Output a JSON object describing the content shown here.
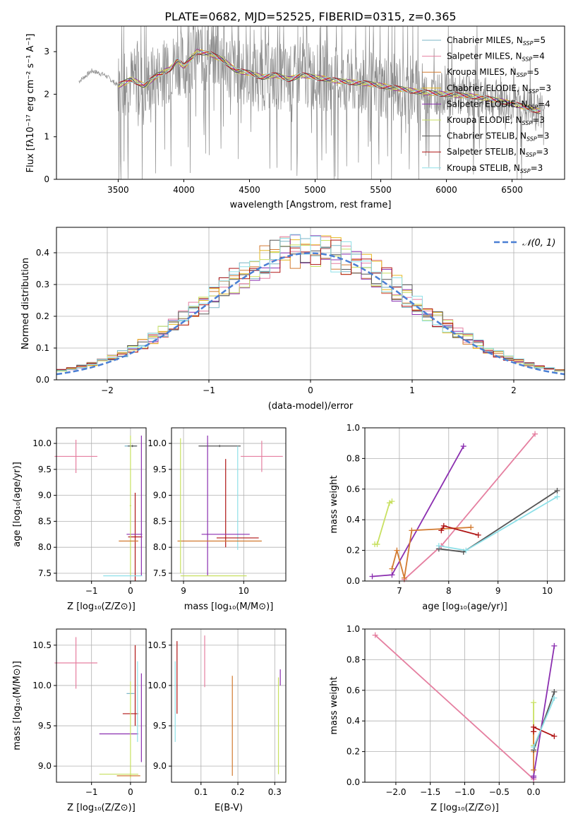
{
  "title": "PLATE=0682, MJD=52525, FIBERID=0315, z=0.365",
  "colors": {
    "chabrier_miles": "#7ab6c6",
    "salpeter_miles": "#e57fa0",
    "kroupa_miles": "#d27a30",
    "chabrier_elodie": "#e6b820",
    "salpeter_elodie": "#8b2fb0",
    "kroupa_elodie": "#c8e060",
    "chabrier_stelib": "#555555",
    "salpeter_stelib": "#b01515",
    "kroupa_stelib": "#8ee0e8",
    "data": "#8a8a8a",
    "normal": "#4a7fd4",
    "grid": "#b0b0b0"
  },
  "chart_data": [
    {
      "type": "line",
      "xlabel": "wavelength [Angstrom, rest frame]",
      "ylabel": "Flux [fλ10⁻¹⁷ erg cm⁻² s⁻¹ A⁻¹]",
      "xlim": [
        3030,
        6900
      ],
      "ylim": [
        0,
        3.6
      ],
      "xticks": [
        3500,
        4000,
        4500,
        5000,
        5500,
        6000,
        6500
      ],
      "yticks": [
        0,
        1,
        2,
        3
      ],
      "legend": "top-right",
      "series": [
        {
          "name": "Chabrier MILES, N_SSP=5"
        },
        {
          "name": "Salpeter MILES, N_SSP=4"
        },
        {
          "name": "Kroupa MILES, N_SSP=5"
        },
        {
          "name": "Chabrier ELODIE, N_SSP=3"
        },
        {
          "name": "Salpeter ELODIE, N_SSP=4"
        },
        {
          "name": "Kroupa ELODIE, N_SSP=3"
        },
        {
          "name": "Chabrier STELIB, N_SSP=3"
        },
        {
          "name": "Salpeter STELIB, N_SSP=3"
        },
        {
          "name": "Kroupa STELIB, N_SSP=3"
        }
      ],
      "model_points": [
        [
          3200,
          2.3
        ],
        [
          3300,
          2.55
        ],
        [
          3400,
          2.45
        ],
        [
          3500,
          2.2
        ],
        [
          3600,
          2.35
        ],
        [
          3700,
          2.2
        ],
        [
          3800,
          2.45
        ],
        [
          3900,
          2.6
        ],
        [
          3950,
          2.8
        ],
        [
          4000,
          2.65
        ],
        [
          4100,
          3.0
        ],
        [
          4200,
          2.95
        ],
        [
          4300,
          2.8
        ],
        [
          4400,
          2.55
        ],
        [
          4500,
          2.5
        ],
        [
          4600,
          2.4
        ],
        [
          4700,
          2.45
        ],
        [
          4800,
          2.35
        ],
        [
          4900,
          2.45
        ],
        [
          5000,
          2.4
        ],
        [
          5200,
          2.3
        ],
        [
          5400,
          2.25
        ],
        [
          5600,
          2.15
        ],
        [
          5800,
          2.05
        ],
        [
          6000,
          2.0
        ],
        [
          6200,
          1.95
        ],
        [
          6400,
          1.85
        ],
        [
          6600,
          1.7
        ],
        [
          6700,
          1.6
        ]
      ]
    },
    {
      "type": "bar",
      "xlabel": "(data-model)/error",
      "ylabel": "Normed distribution",
      "xlim": [
        -2.5,
        2.5
      ],
      "ylim": [
        0,
        0.48
      ],
      "xticks": [
        -2,
        -1,
        0,
        1,
        2
      ],
      "yticks": [
        0,
        0.1,
        0.2,
        0.3,
        0.4
      ],
      "legend": "top-right",
      "normal_label": "𝒩(0, 1)"
    },
    {
      "type": "scatter",
      "xlabel": "Z [log₁₀(Z/Z⊙)]",
      "ylabel": "age  [log₁₀(age/yr)]",
      "xlim": [
        -1.9,
        0.4
      ],
      "ylim": [
        7.35,
        10.3
      ],
      "xticks": [
        -1,
        0
      ],
      "yticks": [
        7.5,
        8.0,
        8.5,
        9.0,
        9.5,
        10.0
      ],
      "points": [
        {
          "series": "salpeter_miles",
          "x": -1.4,
          "y": 9.75,
          "ex": 0.55,
          "ey": 0.3
        },
        {
          "series": "chabrier_miles",
          "x": 0.0,
          "y": 9.95,
          "ex": 0.15,
          "ey": 0.1
        },
        {
          "series": "salpeter_stelib",
          "x": 0.1,
          "y": 8.15,
          "ex": 0.2,
          "ey": 0.9
        },
        {
          "series": "salpeter_elodie",
          "x": 0.3,
          "y": 8.8,
          "ex": 0.6,
          "ey": 1.3
        },
        {
          "series": "kroupa_elodie",
          "x": 0.0,
          "y": 8.8,
          "ex": 0.05,
          "ey": 1.4
        },
        {
          "series": "kroupa_miles",
          "x": -0.05,
          "y": 8.1,
          "ex": 0.3,
          "ey": 0.05
        },
        {
          "series": "kroupa_stelib",
          "x": -0.2,
          "y": 7.45,
          "ex": 0.5,
          "ey": 0.05
        }
      ]
    },
    {
      "type": "scatter",
      "xlabel": "mass [log₁₀(M/M⊙)]",
      "ylabel": "",
      "xlim": [
        8.8,
        10.7
      ],
      "ylim": [
        7.35,
        10.3
      ],
      "xticks": [
        9,
        10
      ],
      "yticks": [
        7.5,
        8.0,
        8.5,
        9.0,
        9.5,
        10.0
      ]
    },
    {
      "type": "line",
      "xlabel": "age  [log₁₀(age/yr)]",
      "ylabel": "mass weight",
      "xlim": [
        6.3,
        10.35
      ],
      "ylim": [
        0,
        1
      ],
      "xticks": [
        7,
        8,
        9,
        10
      ],
      "yticks": [
        0,
        0.2,
        0.4,
        0.6,
        0.8,
        1.0
      ],
      "series": [
        {
          "key": "salpeter_elodie",
          "x": [
            6.45,
            6.85,
            8.3
          ],
          "y": [
            0.03,
            0.04,
            0.88
          ]
        },
        {
          "key": "salpeter_miles",
          "x": [
            7.1,
            7.85,
            9.75
          ],
          "y": [
            0.01,
            0.23,
            0.96
          ]
        },
        {
          "key": "kroupa_elodie",
          "x": [
            6.5,
            6.55,
            6.8,
            6.85
          ],
          "y": [
            0.24,
            0.24,
            0.51,
            0.52
          ]
        },
        {
          "key": "kroupa_miles",
          "x": [
            6.85,
            6.95,
            7.1,
            7.25,
            8.45
          ],
          "y": [
            0.08,
            0.2,
            0.02,
            0.33,
            0.35
          ]
        },
        {
          "key": "salpeter_stelib",
          "x": [
            7.85,
            7.9,
            8.6
          ],
          "y": [
            0.33,
            0.36,
            0.3
          ]
        },
        {
          "key": "chabrier_stelib",
          "x": [
            7.8,
            8.3,
            10.2
          ],
          "y": [
            0.21,
            0.19,
            0.59
          ]
        },
        {
          "key": "kroupa_stelib",
          "x": [
            7.8,
            8.35,
            10.2
          ],
          "y": [
            0.23,
            0.2,
            0.55
          ]
        }
      ]
    },
    {
      "type": "scatter",
      "xlabel": "Z [log₁₀(Z/Z⊙)]",
      "ylabel": "mass [log₁₀(M/M⊙)]",
      "xlim": [
        -1.9,
        0.4
      ],
      "ylim": [
        8.8,
        10.7
      ],
      "xticks": [
        -1,
        0
      ],
      "yticks": [
        9.0,
        9.5,
        10.0,
        10.5
      ]
    },
    {
      "type": "scatter",
      "xlabel": "E(B-V)",
      "ylabel": "",
      "xlim": [
        0.02,
        0.33
      ],
      "ylim": [
        8.8,
        10.7
      ],
      "xticks": [
        0.1,
        0.2,
        0.3
      ],
      "yticks": [
        9.0,
        9.5,
        10.0,
        10.5
      ]
    },
    {
      "type": "line",
      "xlabel": "Z [log₁₀(Z/Z⊙)]",
      "ylabel": "mass weight",
      "xlim": [
        -2.45,
        0.45
      ],
      "ylim": [
        0,
        1
      ],
      "xticks": [
        -2.0,
        -1.5,
        -1.0,
        -0.5,
        0.0
      ],
      "yticks": [
        0,
        0.2,
        0.4,
        0.6,
        0.8,
        1.0
      ],
      "series": [
        {
          "key": "salpeter_miles",
          "x": [
            -2.3,
            0.0
          ],
          "y": [
            0.96,
            0.02
          ]
        },
        {
          "key": "salpeter_elodie",
          "x": [
            0.0,
            0.0,
            0.3
          ],
          "y": [
            0.03,
            0.04,
            0.89
          ]
        },
        {
          "key": "kroupa_elodie",
          "x": [
            0.0,
            0.0
          ],
          "y": [
            0.24,
            0.52
          ]
        },
        {
          "key": "kroupa_miles",
          "x": [
            0.0,
            0.0,
            0.0
          ],
          "y": [
            0.08,
            0.2,
            0.33
          ]
        },
        {
          "key": "salpeter_stelib",
          "x": [
            0.0,
            0.0,
            0.3
          ],
          "y": [
            0.33,
            0.36,
            0.3
          ]
        },
        {
          "key": "chabrier_stelib",
          "x": [
            0.0,
            0.3
          ],
          "y": [
            0.21,
            0.59
          ]
        },
        {
          "key": "kroupa_stelib",
          "x": [
            0.0,
            0.3
          ],
          "y": [
            0.23,
            0.55
          ]
        }
      ]
    }
  ]
}
